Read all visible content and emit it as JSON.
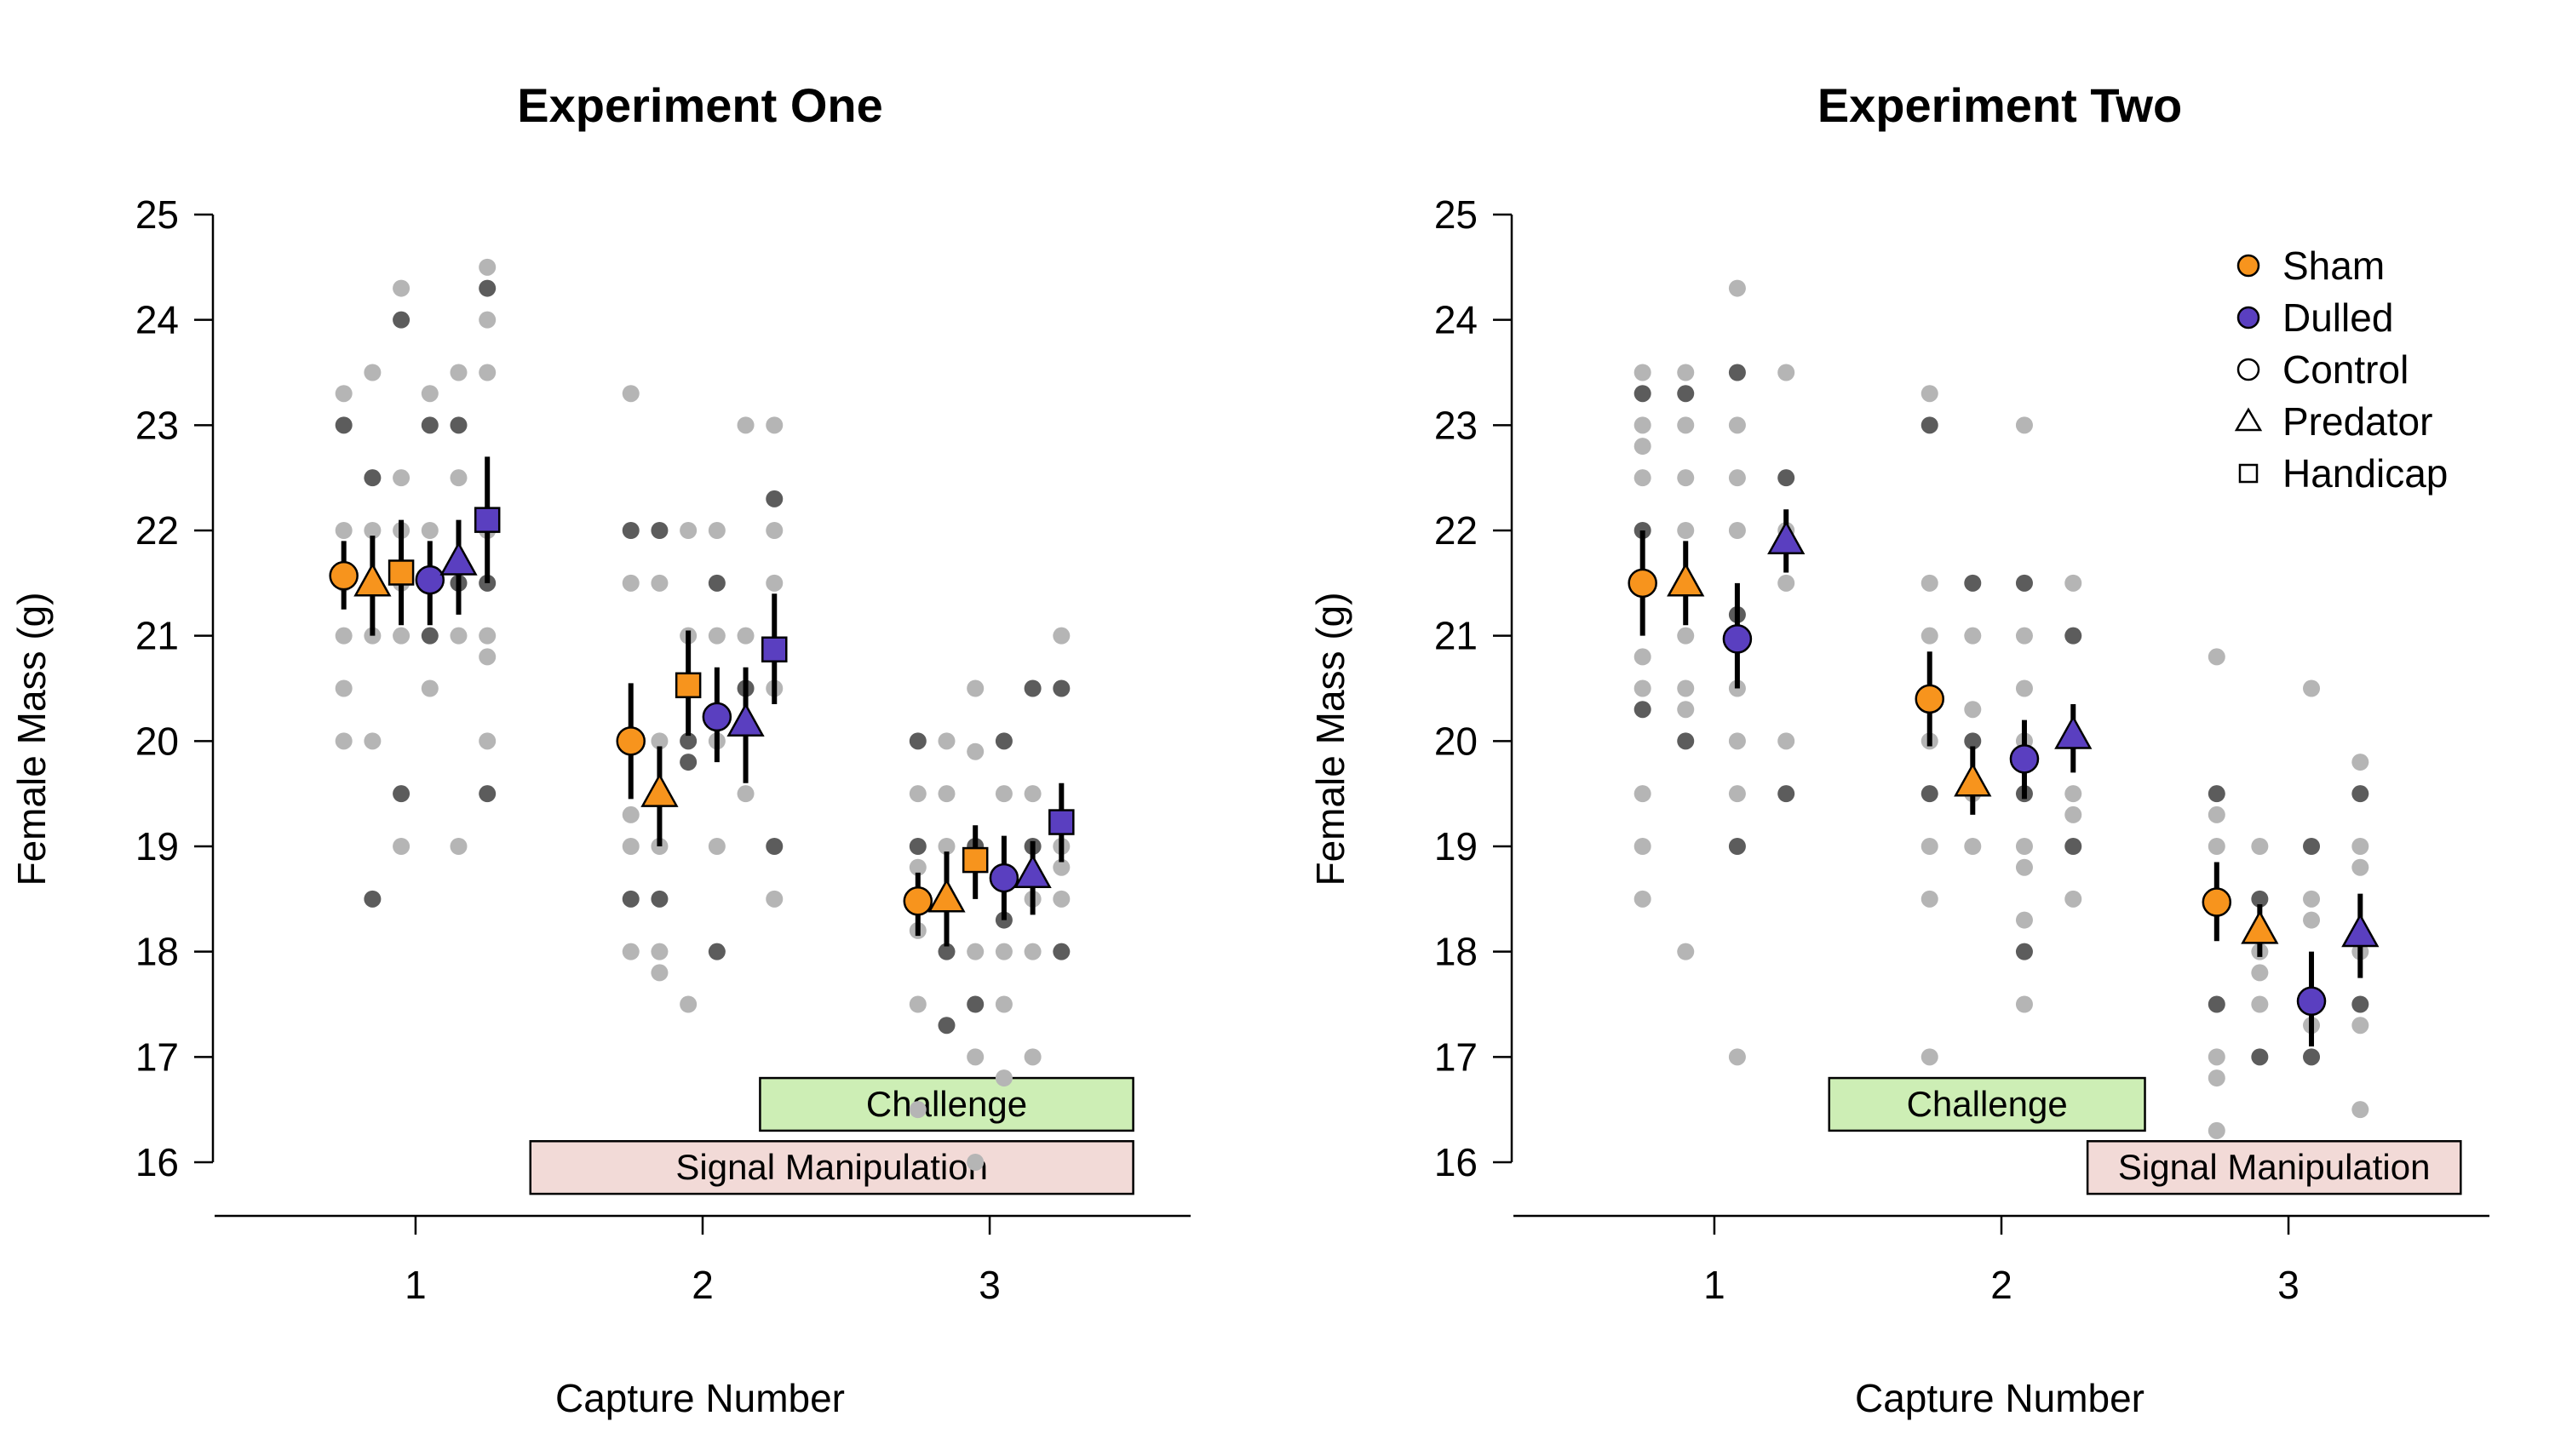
{
  "colors": {
    "sham": "#f7941d",
    "dulled": "#5a3fc0",
    "jitter_light": "#b5b5b5",
    "jitter_dark": "#5c5c5c",
    "challenge": "#cdeeb5",
    "signal": "#f2dad7"
  },
  "chart_data": [
    {
      "type": "scatter",
      "title": "Experiment One",
      "xlabel": "Capture Number",
      "ylabel": "Female Mass (g)",
      "x_ticks": [
        "1",
        "2",
        "3"
      ],
      "y_ticks": [
        "16",
        "17",
        "18",
        "19",
        "20",
        "21",
        "22",
        "23",
        "24",
        "25"
      ],
      "ylim": [
        15.5,
        25
      ],
      "xlim": [
        0.3,
        3.7
      ],
      "annotations": [
        {
          "label": "Challenge",
          "x": [
            2.2,
            3.5
          ],
          "y": [
            16.3,
            16.8
          ],
          "color": "challenge"
        },
        {
          "label": "Signal Manipulation",
          "x": [
            1.4,
            3.5
          ],
          "y": [
            15.7,
            16.2
          ],
          "color": "signal"
        }
      ],
      "series": [
        {
          "name": "Sham Control",
          "group": "sham",
          "shape": "circle",
          "offset": -0.25,
          "means": [
            21.57,
            20.0,
            18.48
          ],
          "ci": [
            [
              21.25,
              21.9
            ],
            [
              19.45,
              20.55
            ],
            [
              18.15,
              18.75
            ]
          ],
          "raw": [
            [
              22.0,
              21.5,
              21.0,
              20.5,
              20.0,
              23.0,
              23.3,
              21.5
            ],
            [
              19.0,
              18.5,
              18.0,
              19.3,
              21.5,
              22.0,
              23.3,
              20.0
            ],
            [
              18.5,
              19.0,
              17.5,
              18.8,
              19.5,
              20.0,
              16.5,
              18.2
            ]
          ]
        },
        {
          "name": "Sham Predator",
          "group": "sham",
          "shape": "triangle",
          "offset": -0.15,
          "means": [
            21.5,
            19.5,
            18.5
          ],
          "ci": [
            [
              21.0,
              21.95
            ],
            [
              19.0,
              19.95
            ],
            [
              18.05,
              18.95
            ]
          ],
          "raw": [
            [
              23.5,
              22.5,
              21.5,
              21.0,
              20.0,
              18.5,
              22.0
            ],
            [
              20.0,
              18.5,
              19.0,
              17.8,
              18.0,
              22.0,
              21.5
            ],
            [
              19.5,
              17.3,
              18.5,
              20.0,
              19.0,
              18.0
            ]
          ]
        },
        {
          "name": "Sham Handicap",
          "group": "sham",
          "shape": "square",
          "offset": -0.05,
          "means": [
            21.6,
            20.53,
            18.87
          ],
          "ci": [
            [
              21.1,
              22.1
            ],
            [
              20.05,
              21.05
            ],
            [
              18.5,
              19.2
            ]
          ],
          "raw": [
            [
              24.3,
              24.0,
              22.5,
              21.5,
              21.0,
              19.5,
              19.0,
              22.0
            ],
            [
              17.5,
              19.8,
              20.5,
              22.0,
              21.0,
              20.0
            ],
            [
              17.0,
              17.5,
              18.0,
              19.9,
              20.5,
              19.0,
              16.0
            ]
          ]
        },
        {
          "name": "Dulled Control",
          "group": "dulled",
          "shape": "circle",
          "offset": 0.05,
          "means": [
            21.53,
            20.23,
            18.7
          ],
          "ci": [
            [
              21.1,
              21.9
            ],
            [
              19.8,
              20.7
            ],
            [
              18.3,
              19.1
            ]
          ],
          "raw": [
            [
              23.3,
              23.0,
              22.0,
              21.5,
              20.5,
              21.0
            ],
            [
              22.0,
              21.5,
              21.0,
              20.0,
              19.0,
              18.0
            ],
            [
              19.5,
              18.3,
              17.5,
              18.0,
              16.8,
              20.0
            ]
          ]
        },
        {
          "name": "Dulled Predator",
          "group": "dulled",
          "shape": "triangle",
          "offset": 0.15,
          "means": [
            21.7,
            20.17,
            18.73
          ],
          "ci": [
            [
              21.2,
              22.1
            ],
            [
              19.6,
              20.7
            ],
            [
              18.35,
              19.05
            ]
          ],
          "raw": [
            [
              23.5,
              23.0,
              22.5,
              21.0,
              19.0,
              21.5
            ],
            [
              21.0,
              20.5,
              19.5,
              23.0
            ],
            [
              19.5,
              19.0,
              18.5,
              18.0,
              17.0,
              20.5
            ]
          ]
        },
        {
          "name": "Dulled Handicap",
          "group": "dulled",
          "shape": "square",
          "offset": 0.25,
          "means": [
            22.1,
            20.87,
            19.23
          ],
          "ci": [
            [
              21.5,
              22.7
            ],
            [
              20.35,
              21.4
            ],
            [
              18.85,
              19.6
            ]
          ],
          "raw": [
            [
              24.5,
              24.3,
              24.0,
              23.5,
              22.0,
              21.5,
              21.0,
              20.8,
              20.0,
              19.5
            ],
            [
              23.0,
              22.3,
              22.0,
              21.5,
              20.5,
              19.0,
              18.5
            ],
            [
              21.0,
              20.5,
              19.0,
              18.8,
              18.5,
              18.0
            ]
          ]
        }
      ]
    },
    {
      "type": "scatter",
      "title": "Experiment Two",
      "xlabel": "Capture Number",
      "ylabel": "Female Mass (g)",
      "x_ticks": [
        "1",
        "2",
        "3"
      ],
      "y_ticks": [
        "16",
        "17",
        "18",
        "19",
        "20",
        "21",
        "22",
        "23",
        "24",
        "25"
      ],
      "ylim": [
        15.5,
        25
      ],
      "xlim": [
        0.3,
        3.7
      ],
      "annotations": [
        {
          "label": "Challenge",
          "x": [
            1.4,
            2.5
          ],
          "y": [
            16.3,
            16.8
          ],
          "color": "challenge"
        },
        {
          "label": "Signal Manipulation",
          "x": [
            2.3,
            3.6
          ],
          "y": [
            15.7,
            16.2
          ],
          "color": "signal"
        }
      ],
      "legend": {
        "position": "top-right",
        "entries": [
          {
            "label": "Sham",
            "kind": "fill",
            "group": "sham"
          },
          {
            "label": "Dulled",
            "kind": "fill",
            "group": "dulled"
          },
          {
            "label": "Control",
            "kind": "shape",
            "shape": "circle"
          },
          {
            "label": "Predator",
            "kind": "shape",
            "shape": "triangle"
          },
          {
            "label": "Handicap",
            "kind": "shape",
            "shape": "square"
          }
        ]
      },
      "series": [
        {
          "name": "Sham Control",
          "group": "sham",
          "shape": "circle",
          "offset": -0.25,
          "means": [
            21.5,
            20.4,
            18.47
          ],
          "ci": [
            [
              21.0,
              22.0
            ],
            [
              19.95,
              20.85
            ],
            [
              18.1,
              18.85
            ]
          ],
          "raw": [
            [
              23.5,
              23.3,
              23.0,
              22.8,
              22.5,
              22.0,
              21.5,
              20.8,
              20.5,
              20.3,
              19.5,
              19.0,
              18.5
            ],
            [
              23.3,
              23.0,
              21.5,
              21.0,
              20.0,
              19.5,
              19.0,
              18.5,
              17.0
            ],
            [
              20.8,
              19.5,
              19.3,
              19.0,
              18.5,
              17.5,
              17.0,
              16.8,
              16.3
            ]
          ]
        },
        {
          "name": "Sham Predator",
          "group": "sham",
          "shape": "triangle",
          "offset": -0.1,
          "means": [
            21.5,
            19.6,
            18.2
          ],
          "ci": [
            [
              21.1,
              21.9
            ],
            [
              19.3,
              19.95
            ],
            [
              17.95,
              18.45
            ]
          ],
          "raw": [
            [
              23.5,
              23.3,
              23.0,
              22.5,
              22.0,
              21.5,
              21.0,
              20.5,
              20.3,
              20.0,
              18.0
            ],
            [
              21.0,
              20.0,
              19.5,
              19.0,
              20.3,
              21.5
            ],
            [
              19.0,
              18.5,
              18.0,
              17.8,
              17.5,
              17.0
            ]
          ]
        },
        {
          "name": "Dulled Control",
          "group": "dulled",
          "shape": "circle",
          "offset": 0.08,
          "means": [
            20.97,
            19.83,
            17.53
          ],
          "ci": [
            [
              20.5,
              21.5
            ],
            [
              19.45,
              20.2
            ],
            [
              17.1,
              18.0
            ]
          ],
          "raw": [
            [
              24.3,
              23.5,
              23.0,
              22.5,
              22.0,
              21.2,
              20.5,
              20.0,
              19.5,
              19.0,
              17.0
            ],
            [
              23.0,
              21.5,
              21.0,
              20.5,
              20.0,
              19.5,
              19.0,
              18.8,
              18.3,
              18.0,
              17.5
            ],
            [
              20.5,
              19.0,
              18.5,
              18.3,
              17.3,
              17.0
            ]
          ]
        },
        {
          "name": "Dulled Predator",
          "group": "dulled",
          "shape": "triangle",
          "offset": 0.25,
          "means": [
            21.9,
            20.05,
            18.17
          ],
          "ci": [
            [
              21.6,
              22.2
            ],
            [
              19.7,
              20.35
            ],
            [
              17.75,
              18.55
            ]
          ],
          "raw": [
            [
              23.5,
              22.5,
              22.0,
              21.5,
              20.0,
              19.5
            ],
            [
              21.5,
              21.0,
              20.0,
              19.5,
              19.3,
              19.0,
              18.5
            ],
            [
              19.8,
              19.5,
              19.0,
              18.8,
              18.0,
              17.5,
              17.3,
              16.5
            ]
          ]
        }
      ]
    }
  ]
}
